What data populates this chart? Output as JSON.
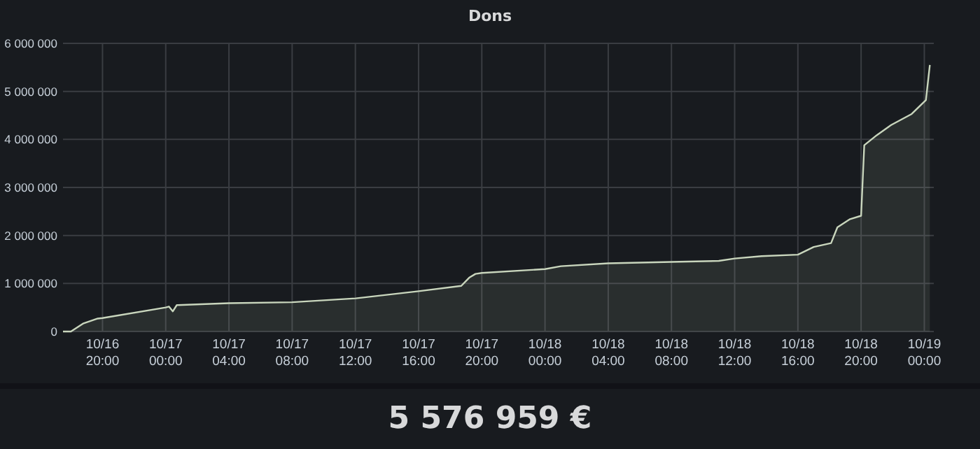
{
  "chart_data": {
    "type": "area",
    "title": "Dons",
    "x": [
      "--10-16T17:30",
      "--10-16T18:00",
      "--10-16T18:48",
      "--10-16T19:42",
      "--10-16T20:00",
      "--10-17T00:00",
      "--10-17T00:12",
      "--10-17T00:27",
      "--10-17T00:42",
      "--10-17T04:00",
      "--10-17T08:00",
      "--10-17T12:00",
      "--10-17T16:00",
      "--10-17T18:42",
      "--10-17T19:12",
      "--10-17T19:36",
      "--10-17T20:00",
      "--10-18T00:00",
      "--10-18T01:00",
      "--10-18T04:00",
      "--10-18T08:00",
      "--10-18T11:00",
      "--10-18T12:00",
      "--10-18T13:42",
      "--10-18T16:00",
      "--10-18T17:00",
      "--10-18T18:06",
      "--10-18T18:30",
      "--10-18T19:18",
      "--10-18T20:00",
      "--10-18T20:12",
      "--10-18T21:00",
      "--10-18T21:54",
      "--10-18T23:12",
      "--10-19T00:06",
      "--10-19T00:21"
    ],
    "series": [
      {
        "color": "#c9d6bd",
        "values": [
          0,
          0,
          170000,
          270000,
          280000,
          500000,
          520000,
          420000,
          550000,
          590000,
          610000,
          690000,
          840000,
          950000,
          1120000,
          1200000,
          1220000,
          1300000,
          1360000,
          1420000,
          1450000,
          1470000,
          1520000,
          1570000,
          1600000,
          1760000,
          1840000,
          2170000,
          2340000,
          2410000,
          3880000,
          4090000,
          4300000,
          4530000,
          4820000,
          5550000
        ]
      }
    ],
    "xlim": [
      "--10-16T17:30",
      "--10-19T00:36"
    ],
    "xticks": [
      {
        "value": "--10-16T20:00",
        "label": "10/16 20:00"
      },
      {
        "value": "--10-17T00:00",
        "label": "10/17 00:00"
      },
      {
        "value": "--10-17T04:00",
        "label": "10/17 04:00"
      },
      {
        "value": "--10-17T08:00",
        "label": "10/17 08:00"
      },
      {
        "value": "--10-17T12:00",
        "label": "10/17 12:00"
      },
      {
        "value": "--10-17T16:00",
        "label": "10/17 16:00"
      },
      {
        "value": "--10-17T20:00",
        "label": "10/17 20:00"
      },
      {
        "value": "--10-18T00:00",
        "label": "10/18 00:00"
      },
      {
        "value": "--10-18T04:00",
        "label": "10/18 04:00"
      },
      {
        "value": "--10-18T08:00",
        "label": "10/18 08:00"
      },
      {
        "value": "--10-18T12:00",
        "label": "10/18 12:00"
      },
      {
        "value": "--10-18T16:00",
        "label": "10/18 16:00"
      },
      {
        "value": "--10-18T20:00",
        "label": "10/18 20:00"
      },
      {
        "value": "--10-19T00:00",
        "label": "10/19 00:00"
      }
    ],
    "ylim": [
      0,
      6000000
    ],
    "yticks": [
      0,
      {
        "value": 1000000,
        "label": "1 000 000"
      },
      {
        "value": 2000000,
        "label": "2 000 000"
      },
      {
        "value": 3000000,
        "label": "3 000 000"
      },
      {
        "value": 4000000,
        "label": "4 000 000"
      },
      {
        "value": 5000000,
        "label": "5 000 000"
      },
      {
        "value": 6000000,
        "label": "6 000 000"
      }
    ],
    "grid": true,
    "annotations": [
      "5 576 959 €"
    ]
  }
}
